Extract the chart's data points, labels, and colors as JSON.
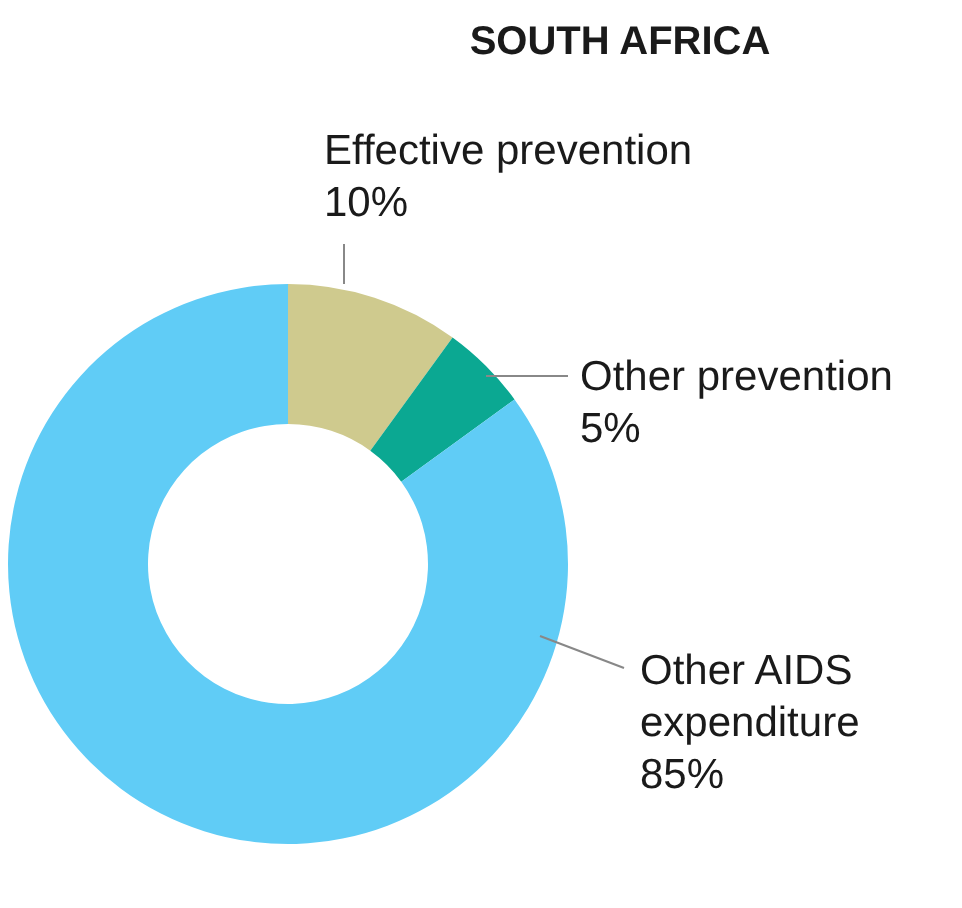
{
  "chart_data": {
    "type": "donut",
    "title": "SOUTH AFRICA",
    "categories": [
      "Effective prevention",
      "Other prevention",
      "Other AIDS expenditure"
    ],
    "values": [
      10,
      5,
      85
    ],
    "value_labels": [
      "10%",
      "5%",
      "85%"
    ],
    "colors": [
      "#cfca8e",
      "#0ba892",
      "#60ccf6"
    ],
    "legend": false
  }
}
